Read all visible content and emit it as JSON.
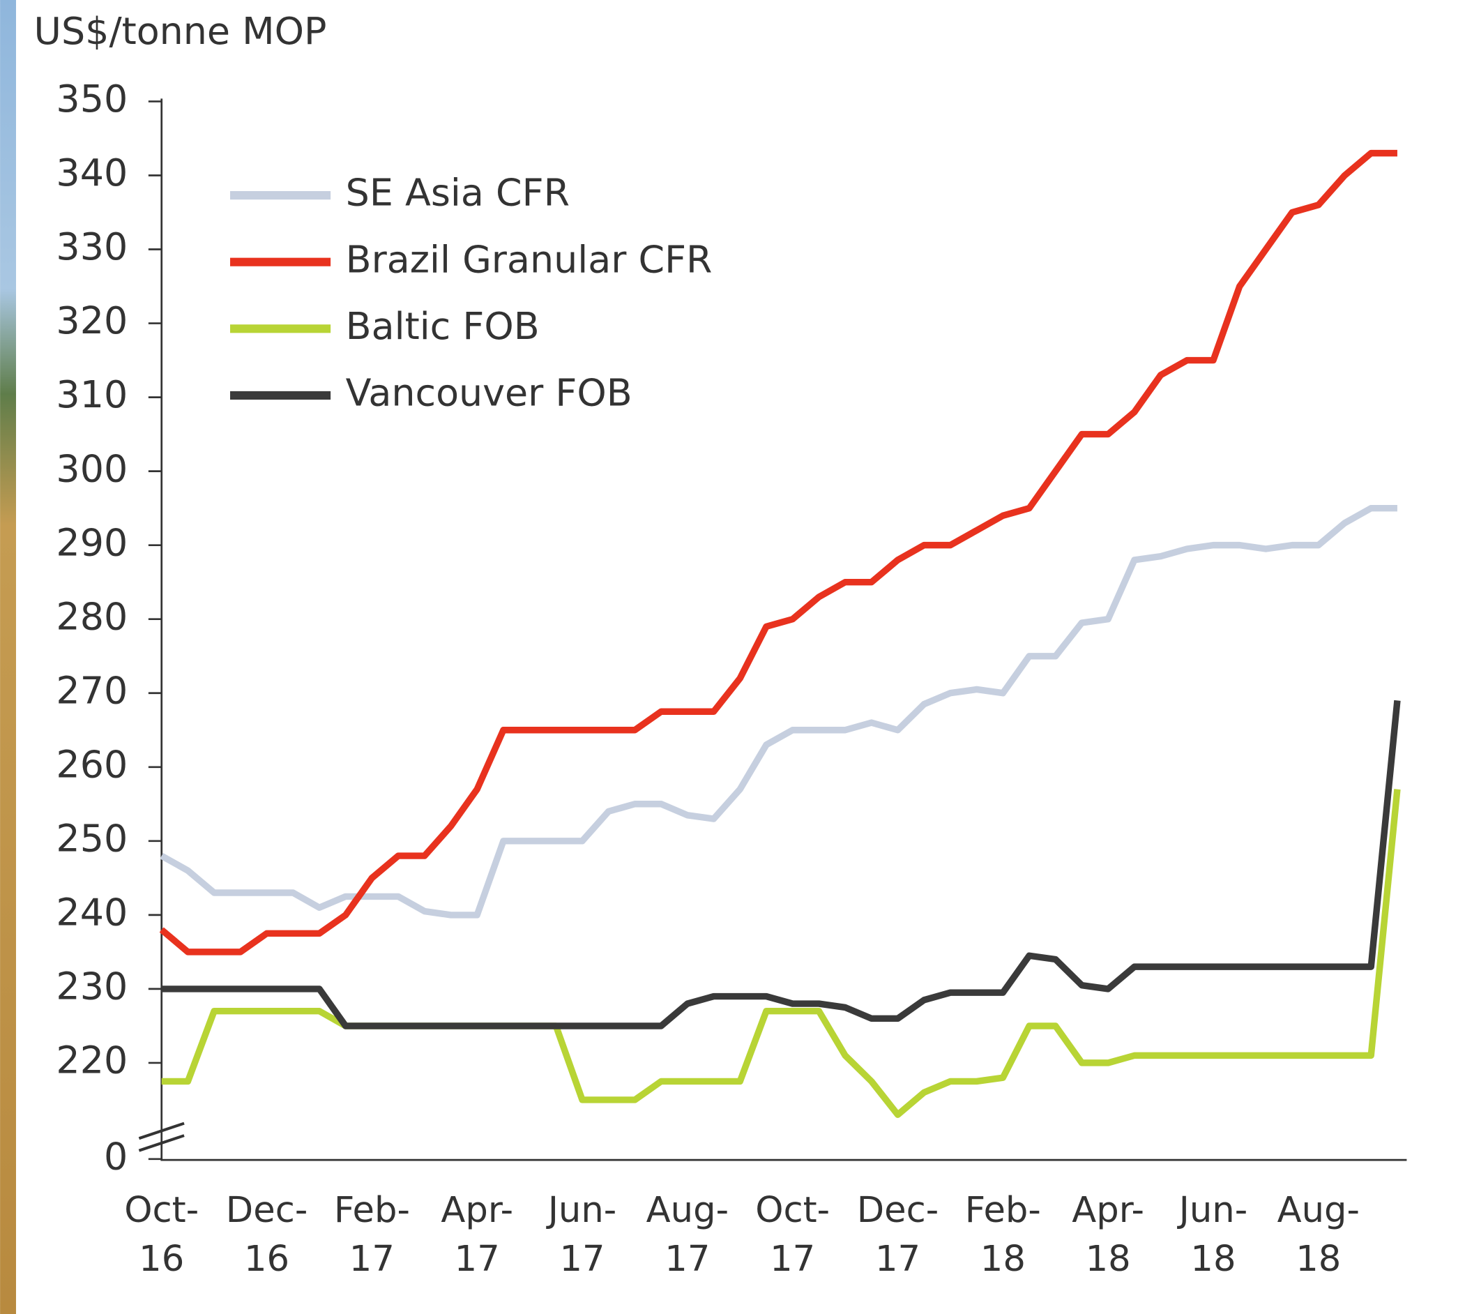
{
  "chart_data": {
    "type": "line",
    "title": "US$/tonne MOP",
    "categories": [
      "Oct- 16",
      null,
      null,
      null,
      "Dec- 16",
      null,
      null,
      null,
      "Feb- 17",
      null,
      null,
      null,
      "Apr- 17",
      null,
      null,
      null,
      "Jun- 17",
      null,
      null,
      null,
      "Aug- 17",
      null,
      null,
      null,
      "Oct- 17",
      null,
      null,
      null,
      "Dec- 17",
      null,
      null,
      null,
      "Feb- 18",
      null,
      null,
      null,
      "Apr- 18",
      null,
      null,
      null,
      "Jun- 18",
      null,
      null,
      null,
      "Aug- 18",
      null,
      null,
      null
    ],
    "series": [
      {
        "name": "SE Asia CFR",
        "color": "#c6cfdf",
        "values": [
          248,
          246,
          243,
          243,
          243,
          243,
          241,
          242.5,
          242.5,
          242.5,
          240.5,
          240,
          240,
          250,
          250,
          250,
          250,
          254,
          255,
          255,
          253.5,
          253,
          257,
          263,
          265,
          265,
          265,
          266,
          265,
          268.5,
          270,
          270.5,
          270,
          275,
          275,
          279.5,
          280,
          288,
          288.5,
          289.5,
          290,
          290,
          289.5,
          290,
          290,
          293,
          295,
          295
        ]
      },
      {
        "name": "Brazil Granular CFR",
        "color": "#e8321e",
        "values": [
          238,
          235,
          235,
          235,
          237.5,
          237.5,
          237.5,
          240,
          245,
          248,
          248,
          252,
          257,
          265,
          265,
          265,
          265,
          265,
          265,
          267.5,
          267.5,
          267.5,
          272,
          279,
          280,
          283,
          285,
          285,
          288,
          290,
          290,
          292,
          294,
          295,
          300,
          305,
          305,
          308,
          313,
          315,
          315,
          325,
          330,
          335,
          336,
          340,
          343,
          343
        ]
      },
      {
        "name": "Baltic FOB",
        "color": "#b8d435",
        "values": [
          217.5,
          217.5,
          227,
          227,
          227,
          227,
          227,
          225,
          225,
          225,
          225,
          225,
          225,
          225,
          225,
          225,
          215,
          215,
          215,
          217.5,
          217.5,
          217.5,
          217.5,
          227,
          227,
          227,
          221,
          217.5,
          213,
          216,
          217.5,
          217.5,
          218,
          225,
          225,
          220,
          220,
          221,
          221,
          221,
          221,
          221,
          221,
          221,
          221,
          221,
          221,
          257
        ]
      },
      {
        "name": "Vancouver FOB",
        "color": "#3a3a3a",
        "values": [
          230,
          230,
          230,
          230,
          230,
          230,
          230,
          225,
          225,
          225,
          225,
          225,
          225,
          225,
          225,
          225,
          225,
          225,
          225,
          225,
          228,
          229,
          229,
          229,
          228,
          228,
          227.5,
          226,
          226,
          228.5,
          229.5,
          229.5,
          229.5,
          234.5,
          234,
          230.5,
          230,
          233,
          233,
          233,
          233,
          233,
          233,
          233,
          233,
          233,
          233,
          269
        ]
      }
    ],
    "ylim": [
      0,
      350
    ],
    "y_break": [
      0,
      207
    ],
    "yticks": [
      0,
      220,
      230,
      240,
      250,
      260,
      270,
      280,
      290,
      300,
      310,
      320,
      330,
      340,
      350
    ],
    "legend": "upper-left"
  }
}
